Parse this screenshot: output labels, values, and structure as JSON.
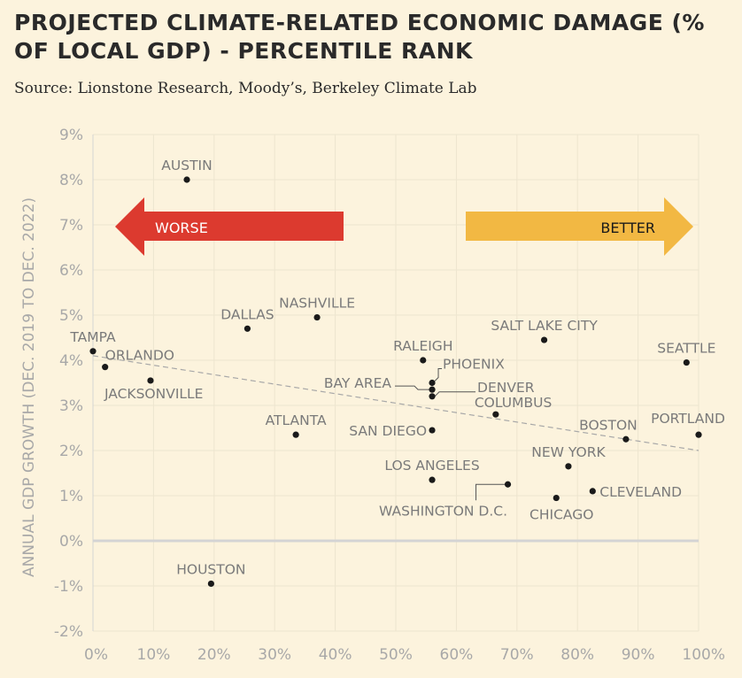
{
  "title": "PROJECTED CLIMATE-RELATED ECONOMIC DAMAGE (% OF LOCAL GDP) - PERCENTILE RANK",
  "subtitle": "Source: Lionstone Research, Moody’s, Berkeley Climate Lab",
  "colors": {
    "background": "#fcf3dd",
    "worse_arrow": "#dc3a2f",
    "better_arrow": "#f2b843",
    "point": "#1a1a1a",
    "trendline": "#a8a8a8",
    "zero_line": "#d4d4d4",
    "grid": "#ede5cf"
  },
  "arrows": {
    "worse": "WORSE",
    "better": "BETTER"
  },
  "chart_data": {
    "type": "scatter",
    "title": "PROJECTED CLIMATE-RELATED ECONOMIC DAMAGE (% OF LOCAL GDP) - PERCENTILE RANK",
    "xlabel": "",
    "ylabel": "ANNUAL GDP GROWTH (DEC. 2019 TO DEC. 2022)",
    "xlim": [
      0,
      100
    ],
    "ylim": [
      -2,
      9
    ],
    "x_ticks": [
      "0%",
      "10%",
      "20%",
      "30%",
      "40%",
      "50%",
      "60%",
      "70%",
      "80%",
      "90%",
      "100%"
    ],
    "y_ticks": [
      "9%",
      "8%",
      "7%",
      "6%",
      "5%",
      "4%",
      "3%",
      "2%",
      "1%",
      "0%",
      "-1%",
      "-2%"
    ],
    "grid": true,
    "trendline": {
      "x": [
        0,
        100
      ],
      "y": [
        4.1,
        2.0
      ]
    },
    "points": [
      {
        "label": "AUSTIN",
        "x": 15.5,
        "y": 8.0
      },
      {
        "label": "NASHVILLE",
        "x": 37,
        "y": 4.95
      },
      {
        "label": "DALLAS",
        "x": 25.5,
        "y": 4.7
      },
      {
        "label": "TAMPA",
        "x": 0,
        "y": 4.2
      },
      {
        "label": "ORLANDO",
        "x": 2,
        "y": 3.85
      },
      {
        "label": "JACKSONVILLE",
        "x": 9.5,
        "y": 3.55
      },
      {
        "label": "ATLANTA",
        "x": 33.5,
        "y": 2.35
      },
      {
        "label": "RALEIGH",
        "x": 54.5,
        "y": 4.0
      },
      {
        "label": "PHOENIX",
        "x": 56,
        "y": 3.5
      },
      {
        "label": "BAY AREA",
        "x": 56,
        "y": 3.35
      },
      {
        "label": "DENVER",
        "x": 56,
        "y": 3.2
      },
      {
        "label": "SAN DIEGO",
        "x": 56,
        "y": 2.45
      },
      {
        "label": "LOS ANGELES",
        "x": 56,
        "y": 1.35
      },
      {
        "label": "SALT LAKE CITY",
        "x": 74.5,
        "y": 4.45
      },
      {
        "label": "COLUMBUS",
        "x": 66.5,
        "y": 2.8
      },
      {
        "label": "WASHINGTON D.C.",
        "x": 68.5,
        "y": 1.25
      },
      {
        "label": "NEW YORK",
        "x": 78.5,
        "y": 1.65
      },
      {
        "label": "CHICAGO",
        "x": 76.5,
        "y": 0.95
      },
      {
        "label": "CLEVELAND",
        "x": 82.5,
        "y": 1.1
      },
      {
        "label": "BOSTON",
        "x": 88,
        "y": 2.25
      },
      {
        "label": "SEATTLE",
        "x": 98,
        "y": 3.95
      },
      {
        "label": "PORTLAND",
        "x": 100,
        "y": 2.35
      },
      {
        "label": "HOUSTON",
        "x": 19.5,
        "y": -0.95
      }
    ]
  }
}
